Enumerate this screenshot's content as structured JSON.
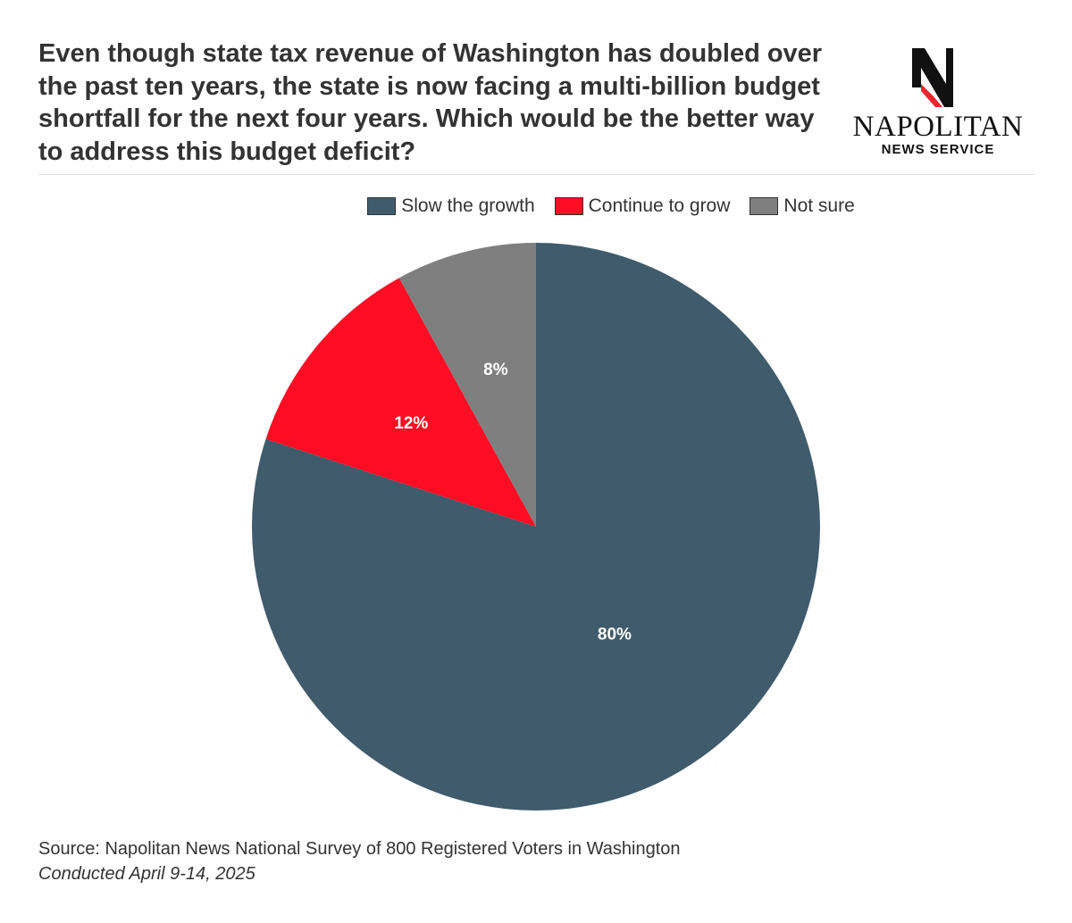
{
  "header": {
    "title": "Even though state tax revenue of Washington has doubled over the past ten years, the state is now facing a multi-billion budget shortfall for the next four years. Which would be the better way to address this budget deficit?"
  },
  "logo": {
    "name": "NAPOLITAN",
    "subtitle": "NEWS SERVICE",
    "mark_colors": {
      "primary": "#111111",
      "accent": "#e8262f"
    }
  },
  "chart_data": {
    "type": "pie",
    "title": "",
    "legend_position": "top",
    "start_angle_deg": 0,
    "direction": "clockwise",
    "slices": [
      {
        "name": "Slow the growth",
        "value": 80,
        "label": "80%",
        "color": "#405b6b"
      },
      {
        "name": "Continue to grow",
        "value": 12,
        "label": "12%",
        "color": "#fe0d24"
      },
      {
        "name": "Not sure",
        "value": 8,
        "label": "8%",
        "color": "#7f7f7f"
      }
    ]
  },
  "footer": {
    "source": "Source: Napolitan News National Survey of 800 Registered Voters in Washington",
    "conducted": "Conducted April 9-14, 2025"
  }
}
